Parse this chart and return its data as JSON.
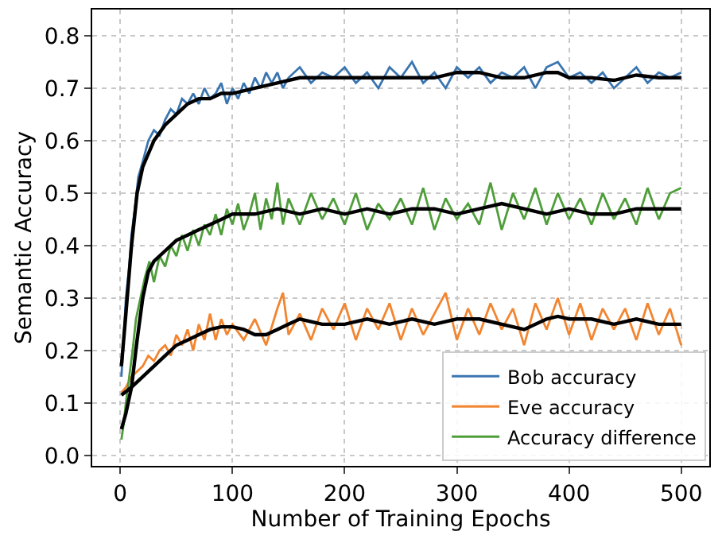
{
  "chart_data": {
    "type": "line",
    "xlabel": "Number of Training Epochs",
    "ylabel": "Semantic Accuracy",
    "xlim": [
      -25,
      525
    ],
    "xticks": [
      0,
      100,
      200,
      300,
      400,
      500
    ],
    "ylim": [
      -0.02,
      0.85
    ],
    "yticks": [
      {
        "value": 0,
        "label": "0.0"
      },
      0.1,
      0.2,
      0.3,
      0.4,
      0.5,
      0.6,
      0.7,
      0.8
    ],
    "grid": true,
    "legend": "bottom right",
    "marker": "none",
    "line_style": "solid",
    "series": [
      {
        "name": "Bob accuracy",
        "color": "#3a75b0",
        "x": [
          1,
          3,
          5,
          8,
          10,
          13,
          16,
          20,
          25,
          30,
          35,
          40,
          45,
          50,
          55,
          60,
          65,
          70,
          75,
          80,
          85,
          90,
          95,
          100,
          105,
          110,
          115,
          120,
          125,
          130,
          135,
          140,
          145,
          150,
          160,
          170,
          180,
          190,
          200,
          210,
          220,
          230,
          240,
          250,
          260,
          270,
          280,
          290,
          300,
          310,
          320,
          330,
          340,
          350,
          360,
          370,
          380,
          390,
          400,
          410,
          420,
          430,
          440,
          450,
          460,
          470,
          480,
          490,
          500
        ],
        "values": [
          0.15,
          0.22,
          0.3,
          0.36,
          0.42,
          0.47,
          0.53,
          0.56,
          0.6,
          0.62,
          0.61,
          0.64,
          0.66,
          0.65,
          0.68,
          0.67,
          0.69,
          0.67,
          0.7,
          0.68,
          0.69,
          0.71,
          0.67,
          0.7,
          0.68,
          0.71,
          0.69,
          0.72,
          0.7,
          0.73,
          0.71,
          0.73,
          0.7,
          0.72,
          0.74,
          0.71,
          0.73,
          0.72,
          0.74,
          0.71,
          0.73,
          0.7,
          0.74,
          0.72,
          0.75,
          0.71,
          0.73,
          0.7,
          0.74,
          0.72,
          0.74,
          0.71,
          0.73,
          0.72,
          0.74,
          0.7,
          0.74,
          0.75,
          0.72,
          0.73,
          0.71,
          0.73,
          0.7,
          0.72,
          0.74,
          0.71,
          0.73,
          0.72,
          0.73
        ]
      },
      {
        "name": "Eve accuracy",
        "color": "#f28530",
        "x": [
          1,
          5,
          10,
          15,
          20,
          25,
          30,
          35,
          40,
          45,
          50,
          55,
          60,
          65,
          70,
          75,
          80,
          85,
          90,
          95,
          100,
          110,
          120,
          130,
          140,
          145,
          150,
          160,
          170,
          180,
          190,
          200,
          210,
          220,
          230,
          240,
          250,
          260,
          270,
          280,
          290,
          300,
          310,
          320,
          330,
          340,
          350,
          360,
          370,
          380,
          390,
          400,
          410,
          420,
          430,
          440,
          450,
          460,
          470,
          480,
          490,
          500
        ],
        "values": [
          0.12,
          0.13,
          0.15,
          0.16,
          0.17,
          0.19,
          0.18,
          0.2,
          0.21,
          0.19,
          0.23,
          0.21,
          0.24,
          0.2,
          0.25,
          0.22,
          0.27,
          0.22,
          0.26,
          0.23,
          0.25,
          0.22,
          0.26,
          0.21,
          0.28,
          0.31,
          0.23,
          0.27,
          0.22,
          0.28,
          0.24,
          0.29,
          0.22,
          0.28,
          0.24,
          0.29,
          0.22,
          0.28,
          0.23,
          0.27,
          0.31,
          0.22,
          0.28,
          0.23,
          0.29,
          0.24,
          0.28,
          0.21,
          0.29,
          0.24,
          0.3,
          0.23,
          0.29,
          0.22,
          0.28,
          0.24,
          0.28,
          0.22,
          0.29,
          0.23,
          0.28,
          0.21
        ]
      },
      {
        "name": "Accuracy difference",
        "color": "#4f9e3a",
        "x": [
          1,
          3,
          5,
          8,
          11,
          14,
          18,
          22,
          26,
          30,
          35,
          40,
          45,
          50,
          55,
          60,
          65,
          70,
          75,
          80,
          85,
          90,
          95,
          100,
          105,
          110,
          115,
          120,
          125,
          130,
          135,
          140,
          145,
          150,
          160,
          170,
          180,
          190,
          200,
          210,
          220,
          230,
          240,
          250,
          260,
          270,
          280,
          290,
          300,
          310,
          320,
          330,
          340,
          350,
          360,
          370,
          380,
          390,
          400,
          410,
          420,
          430,
          440,
          450,
          460,
          470,
          480,
          490,
          500
        ],
        "values": [
          0.03,
          0.06,
          0.1,
          0.15,
          0.2,
          0.26,
          0.3,
          0.34,
          0.37,
          0.33,
          0.38,
          0.36,
          0.4,
          0.38,
          0.42,
          0.39,
          0.43,
          0.4,
          0.44,
          0.42,
          0.46,
          0.42,
          0.47,
          0.44,
          0.48,
          0.43,
          0.46,
          0.5,
          0.43,
          0.49,
          0.45,
          0.52,
          0.44,
          0.49,
          0.44,
          0.5,
          0.45,
          0.49,
          0.44,
          0.5,
          0.43,
          0.48,
          0.45,
          0.49,
          0.44,
          0.51,
          0.43,
          0.49,
          0.45,
          0.48,
          0.44,
          0.52,
          0.43,
          0.5,
          0.45,
          0.51,
          0.44,
          0.5,
          0.45,
          0.49,
          0.44,
          0.5,
          0.45,
          0.49,
          0.44,
          0.51,
          0.45,
          0.5,
          0.51
        ]
      },
      {
        "color": "#000000",
        "x": [
          1,
          5,
          10,
          15,
          20,
          30,
          40,
          50,
          60,
          70,
          80,
          90,
          100,
          120,
          140,
          160,
          180,
          200,
          220,
          240,
          260,
          280,
          300,
          320,
          340,
          360,
          380,
          390,
          400,
          420,
          440,
          460,
          480,
          500
        ],
        "values": [
          0.17,
          0.27,
          0.4,
          0.5,
          0.55,
          0.6,
          0.63,
          0.65,
          0.67,
          0.68,
          0.68,
          0.69,
          0.69,
          0.7,
          0.71,
          0.72,
          0.72,
          0.72,
          0.72,
          0.72,
          0.72,
          0.72,
          0.73,
          0.73,
          0.72,
          0.72,
          0.73,
          0.73,
          0.72,
          0.72,
          0.715,
          0.725,
          0.72,
          0.72
        ]
      },
      {
        "color": "#000000",
        "x": [
          1,
          10,
          20,
          30,
          40,
          50,
          60,
          70,
          80,
          90,
          100,
          110,
          120,
          130,
          140,
          150,
          160,
          180,
          200,
          220,
          240,
          260,
          280,
          300,
          320,
          340,
          360,
          380,
          390,
          400,
          420,
          440,
          460,
          480,
          500
        ],
        "values": [
          0.115,
          0.13,
          0.15,
          0.17,
          0.19,
          0.21,
          0.22,
          0.23,
          0.24,
          0.245,
          0.245,
          0.24,
          0.23,
          0.23,
          0.24,
          0.25,
          0.26,
          0.25,
          0.25,
          0.26,
          0.25,
          0.26,
          0.25,
          0.26,
          0.26,
          0.25,
          0.24,
          0.26,
          0.265,
          0.26,
          0.26,
          0.25,
          0.26,
          0.25,
          0.25
        ]
      },
      {
        "color": "#000000",
        "x": [
          1,
          5,
          10,
          15,
          20,
          25,
          30,
          40,
          50,
          60,
          70,
          80,
          90,
          100,
          120,
          140,
          160,
          180,
          200,
          220,
          240,
          260,
          280,
          300,
          320,
          340,
          360,
          380,
          400,
          420,
          440,
          460,
          480,
          500
        ],
        "values": [
          0.05,
          0.08,
          0.13,
          0.22,
          0.3,
          0.35,
          0.37,
          0.39,
          0.41,
          0.42,
          0.43,
          0.44,
          0.45,
          0.46,
          0.46,
          0.47,
          0.46,
          0.47,
          0.46,
          0.47,
          0.46,
          0.47,
          0.47,
          0.46,
          0.47,
          0.48,
          0.47,
          0.46,
          0.47,
          0.46,
          0.46,
          0.47,
          0.47,
          0.47
        ]
      }
    ]
  }
}
